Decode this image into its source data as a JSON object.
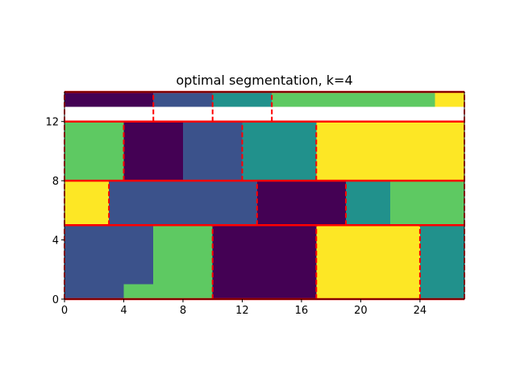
{
  "chart_data": {
    "type": "heatmap",
    "title": "optimal segmentation, k=4",
    "xlabel": "",
    "ylabel": "",
    "xlim": [
      0,
      27
    ],
    "ylim": [
      0,
      14
    ],
    "xticks": [
      0,
      4,
      8,
      12,
      16,
      20,
      24
    ],
    "yticks": [
      0,
      4,
      8,
      12
    ],
    "grid": false,
    "colormap": [
      "#440154",
      "#3b528b",
      "#21918c",
      "#5ec962",
      "#fde725"
    ],
    "boundary_color": "#ff0000",
    "cells": [
      {
        "x0": 0,
        "x1": 6,
        "y0": 13,
        "y1": 14,
        "c": 0
      },
      {
        "x0": 6,
        "x1": 10,
        "y0": 13,
        "y1": 14,
        "c": 1
      },
      {
        "x0": 10,
        "x1": 14,
        "y0": 13,
        "y1": 14,
        "c": 2
      },
      {
        "x0": 14,
        "x1": 25,
        "y0": 13,
        "y1": 14,
        "c": 3
      },
      {
        "x0": 25,
        "x1": 27,
        "y0": 13,
        "y1": 14,
        "c": 4
      },
      {
        "x0": 0,
        "x1": 4,
        "y0": 8,
        "y1": 12,
        "c": 3
      },
      {
        "x0": 4,
        "x1": 8,
        "y0": 8,
        "y1": 12,
        "c": 0
      },
      {
        "x0": 8,
        "x1": 12,
        "y0": 8,
        "y1": 12,
        "c": 1
      },
      {
        "x0": 12,
        "x1": 17,
        "y0": 8,
        "y1": 12,
        "c": 2
      },
      {
        "x0": 17,
        "x1": 27,
        "y0": 8,
        "y1": 12,
        "c": 4
      },
      {
        "x0": 0,
        "x1": 3,
        "y0": 5,
        "y1": 8,
        "c": 4
      },
      {
        "x0": 3,
        "x1": 13,
        "y0": 5,
        "y1": 8,
        "c": 1
      },
      {
        "x0": 13,
        "x1": 19,
        "y0": 5,
        "y1": 8,
        "c": 0
      },
      {
        "x0": 19,
        "x1": 22,
        "y0": 5,
        "y1": 8,
        "c": 2
      },
      {
        "x0": 22,
        "x1": 27,
        "y0": 5,
        "y1": 8,
        "c": 3
      },
      {
        "x0": 0,
        "x1": 6,
        "y0": 1,
        "y1": 5,
        "c": 1
      },
      {
        "x0": 0,
        "x1": 4,
        "y0": 0,
        "y1": 1,
        "c": 1
      },
      {
        "x0": 4,
        "x1": 6,
        "y0": 0,
        "y1": 1,
        "c": 3
      },
      {
        "x0": 6,
        "x1": 10,
        "y0": 0,
        "y1": 5,
        "c": 3
      },
      {
        "x0": 10,
        "x1": 17,
        "y0": 0,
        "y1": 5,
        "c": 0
      },
      {
        "x0": 17,
        "x1": 24,
        "y0": 0,
        "y1": 5,
        "c": 4
      },
      {
        "x0": 24,
        "x1": 27,
        "y0": 0,
        "y1": 5,
        "c": 2
      }
    ],
    "row_boundaries": [
      5,
      8,
      12
    ],
    "column_boundaries": [
      {
        "y0": 12,
        "y1": 14,
        "x": [
          6,
          10,
          14
        ]
      },
      {
        "y0": 8,
        "y1": 12,
        "x": [
          4,
          12,
          17
        ]
      },
      {
        "y0": 5,
        "y1": 8,
        "x": [
          3,
          13,
          19
        ]
      },
      {
        "y0": 0,
        "y1": 5,
        "x": [
          10,
          17,
          24
        ]
      }
    ]
  }
}
